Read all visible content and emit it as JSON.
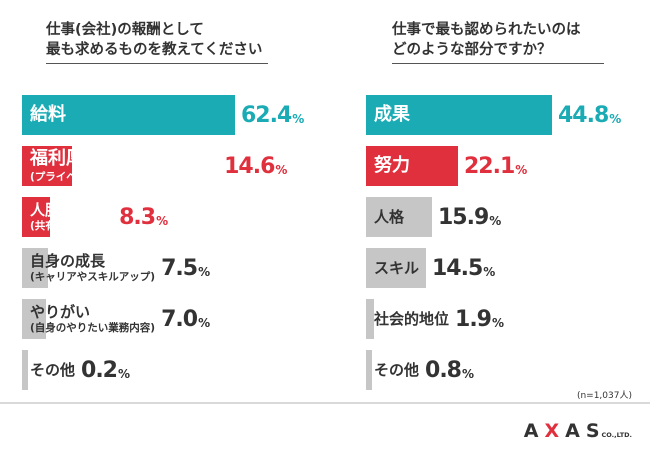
{
  "colors": {
    "teal": "#1aabb4",
    "red": "#e0303e",
    "gray": "#c6c6c6",
    "text_dark": "#333333"
  },
  "chart_data": [
    {
      "type": "bar",
      "orientation": "horizontal",
      "title": "仕事(会社)の報酬として\n最も求めるものを教えてください",
      "unit": "%",
      "xlim": [
        0,
        62.4
      ],
      "categories": [
        "給料",
        "福利厚生",
        "人脈形成",
        "自身の成長",
        "やりがい",
        "その他"
      ],
      "sublabels": [
        "",
        "(プライベートに割ける時間なども含む)",
        "(共有、協働の場)",
        "(キャリアやスキルアップ)",
        "(自身のやりたい業務内容)",
        ""
      ],
      "values": [
        62.4,
        14.6,
        8.3,
        7.5,
        7.0,
        0.2
      ],
      "value_labels": [
        {
          "int": "62",
          "dec": ".4",
          "unit": "%"
        },
        {
          "int": "14",
          "dec": ".6",
          "unit": "%"
        },
        {
          "int": "8",
          "dec": ".3",
          "unit": "%"
        },
        {
          "int": "7",
          "dec": ".5",
          "unit": "%"
        },
        {
          "int": "7",
          "dec": ".0",
          "unit": "%"
        },
        {
          "int": "0",
          "dec": ".2",
          "unit": "%"
        }
      ],
      "bar_colors": [
        "teal",
        "red",
        "red",
        "gray",
        "gray",
        "gray"
      ]
    },
    {
      "type": "bar",
      "orientation": "horizontal",
      "title": "仕事で最も認められたいのは\nどのような部分ですか？",
      "unit": "%",
      "xlim": [
        0,
        44.8
      ],
      "categories": [
        "成果",
        "努力",
        "人格",
        "スキル",
        "社会的地位",
        "その他"
      ],
      "sublabels": [
        "",
        "",
        "",
        "",
        "",
        ""
      ],
      "values": [
        44.8,
        22.1,
        15.9,
        14.5,
        1.9,
        0.8
      ],
      "value_labels": [
        {
          "int": "44",
          "dec": ".8",
          "unit": "%"
        },
        {
          "int": "22",
          "dec": ".1",
          "unit": "%"
        },
        {
          "int": "15",
          "dec": ".9",
          "unit": "%"
        },
        {
          "int": "14",
          "dec": ".5",
          "unit": "%"
        },
        {
          "int": "1",
          "dec": ".9",
          "unit": "%"
        },
        {
          "int": "0",
          "dec": ".8",
          "unit": "%"
        }
      ],
      "bar_colors": [
        "teal",
        "red",
        "gray",
        "gray",
        "gray",
        "gray"
      ]
    }
  ],
  "footer": {
    "sample_note": "(n=1,037人)",
    "logo_a": "A",
    "logo_x": "X",
    "logo_rest": "AS",
    "logo_suffix": "CO.,LTD."
  }
}
